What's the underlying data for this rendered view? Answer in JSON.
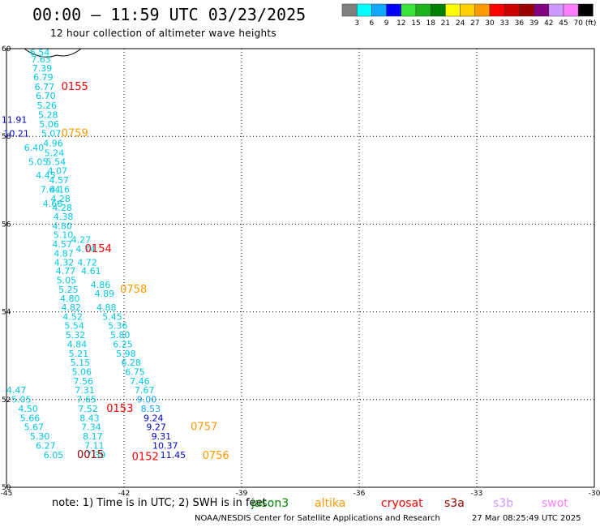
{
  "header": {
    "title": "00:00 – 11:59 UTC 03/23/2025",
    "subtitle": "12 hour collection of altimeter wave heights"
  },
  "colorbar": {
    "colors": [
      "#7f7f7f",
      "#00ffff",
      "#0fa7ff",
      "#0000ff",
      "#39e539",
      "#1db31d",
      "#008000",
      "#ffff00",
      "#ffd000",
      "#ff9900",
      "#ff0000",
      "#cc0000",
      "#990000",
      "#800080",
      "#cc99ff",
      "#ff80ff",
      "#000000"
    ],
    "labels": [
      "3",
      "6",
      "9",
      "12",
      "15",
      "18",
      "21",
      "24",
      "27",
      "30",
      "33",
      "36",
      "39",
      "42",
      "45",
      "70"
    ],
    "unit": "(ft)"
  },
  "footer": {
    "note": "note:  1) Time is in UTC;  2) SWH is in feet",
    "credit": "NOAA/NESDIS Center for Satellite Applications and Research",
    "timestamp": "27 Mar 08:25:49 UTC 2025"
  },
  "legend": [
    {
      "name": "jason3",
      "color": "#008000"
    },
    {
      "name": "altika",
      "color": "#ff9900"
    },
    {
      "name": "cryosat",
      "color": "#ff0000"
    },
    {
      "name": "s3a",
      "color": "#990000"
    },
    {
      "name": "s3b",
      "color": "#cc99ff"
    },
    {
      "name": "swot",
      "color": "#ff80ff"
    }
  ],
  "chart_data": {
    "type": "scatter",
    "xlim": [
      -45,
      -30
    ],
    "ylim": [
      50,
      60
    ],
    "x_ticks": [
      -45,
      -42,
      -39,
      -36,
      -33,
      -30
    ],
    "y_ticks": [
      50,
      52,
      54,
      56,
      58,
      60
    ],
    "x_tick_labels": [
      "-45",
      "-42",
      "-39",
      "-36",
      "-33",
      "-30"
    ],
    "y_tick_labels": [
      "50",
      "52",
      "54",
      "56",
      "58",
      "60"
    ],
    "grid": true,
    "wave_heights": [
      {
        "lon": -44.15,
        "lat": 59.84,
        "v": "6.54",
        "c": "#00c8e0"
      },
      {
        "lon": -44.12,
        "lat": 59.69,
        "v": "7.63",
        "c": "#00c8e0"
      },
      {
        "lon": -44.09,
        "lat": 59.48,
        "v": "7.39",
        "c": "#00c8e0"
      },
      {
        "lon": -44.06,
        "lat": 59.28,
        "v": "6.79",
        "c": "#00c8e0"
      },
      {
        "lon": -44.03,
        "lat": 59.06,
        "v": "6.77",
        "c": "#00c8e0"
      },
      {
        "lon": -44.0,
        "lat": 58.85,
        "v": "6.70",
        "c": "#00c8e0"
      },
      {
        "lon": -43.97,
        "lat": 58.63,
        "v": "5.26",
        "c": "#00c8e0"
      },
      {
        "lon": -43.94,
        "lat": 58.42,
        "v": "5.28",
        "c": "#00c8e0"
      },
      {
        "lon": -43.91,
        "lat": 58.21,
        "v": "5.06",
        "c": "#00c8e0"
      },
      {
        "lon": -43.86,
        "lat": 57.99,
        "v": "5.07",
        "c": "#00c8e0"
      },
      {
        "lon": -43.81,
        "lat": 57.77,
        "v": "4.96",
        "c": "#00c8e0"
      },
      {
        "lon": -43.78,
        "lat": 57.55,
        "v": "5.24",
        "c": "#00c8e0"
      },
      {
        "lon": -43.74,
        "lat": 57.35,
        "v": "5.54",
        "c": "#00c8e0"
      },
      {
        "lon": -43.7,
        "lat": 57.14,
        "v": "4.07",
        "c": "#00c8e0"
      },
      {
        "lon": -43.66,
        "lat": 56.93,
        "v": "4.57",
        "c": "#00c8e0"
      },
      {
        "lon": -43.64,
        "lat": 56.72,
        "v": "4.16",
        "c": "#00c8e0"
      },
      {
        "lon": -43.62,
        "lat": 56.51,
        "v": "4.28",
        "c": "#00c8e0"
      },
      {
        "lon": -43.58,
        "lat": 56.3,
        "v": "4.28",
        "c": "#00c8e0"
      },
      {
        "lon": -43.55,
        "lat": 56.1,
        "v": "4.38",
        "c": "#00c8e0"
      },
      {
        "lon": -43.58,
        "lat": 55.89,
        "v": "4.80",
        "c": "#00c8e0"
      },
      {
        "lon": -43.55,
        "lat": 55.68,
        "v": "5.10",
        "c": "#00c8e0"
      },
      {
        "lon": -43.58,
        "lat": 55.47,
        "v": "4.57",
        "c": "#00c8e0"
      },
      {
        "lon": -43.54,
        "lat": 55.26,
        "v": "4.87",
        "c": "#00c8e0"
      },
      {
        "lon": -43.53,
        "lat": 55.06,
        "v": "4.32",
        "c": "#00c8e0"
      },
      {
        "lon": -43.49,
        "lat": 54.86,
        "v": "4.77",
        "c": "#00c8e0"
      },
      {
        "lon": -43.47,
        "lat": 54.65,
        "v": "5.05",
        "c": "#00c8e0"
      },
      {
        "lon": -43.42,
        "lat": 54.44,
        "v": "5.25",
        "c": "#00c8e0"
      },
      {
        "lon": -43.38,
        "lat": 54.23,
        "v": "4.80",
        "c": "#00c8e0"
      },
      {
        "lon": -43.35,
        "lat": 54.03,
        "v": "4.82",
        "c": "#00c8e0"
      },
      {
        "lon": -43.31,
        "lat": 53.82,
        "v": "4.52",
        "c": "#00c8e0"
      },
      {
        "lon": -43.27,
        "lat": 53.61,
        "v": "5.54",
        "c": "#00c8e0"
      },
      {
        "lon": -43.24,
        "lat": 53.4,
        "v": "5.32",
        "c": "#00c8e0"
      },
      {
        "lon": -43.2,
        "lat": 53.19,
        "v": "4.84",
        "c": "#00c8e0"
      },
      {
        "lon": -43.16,
        "lat": 52.98,
        "v": "5.21",
        "c": "#00c8e0"
      },
      {
        "lon": -43.12,
        "lat": 52.77,
        "v": "5.15",
        "c": "#00c8e0"
      },
      {
        "lon": -43.08,
        "lat": 52.56,
        "v": "5.06",
        "c": "#00c8e0"
      },
      {
        "lon": -43.04,
        "lat": 52.35,
        "v": "7.56",
        "c": "#00c8e0"
      },
      {
        "lon": -43.0,
        "lat": 52.14,
        "v": "7.31",
        "c": "#00c8e0"
      },
      {
        "lon": -42.96,
        "lat": 51.93,
        "v": "7.65",
        "c": "#00c8e0"
      },
      {
        "lon": -42.92,
        "lat": 51.72,
        "v": "7.52",
        "c": "#00c8e0"
      },
      {
        "lon": -42.88,
        "lat": 51.51,
        "v": "8.43",
        "c": "#00c8e0"
      },
      {
        "lon": -42.84,
        "lat": 51.3,
        "v": "7.34",
        "c": "#00c8e0"
      },
      {
        "lon": -42.8,
        "lat": 51.09,
        "v": "8.17",
        "c": "#00c8e0"
      },
      {
        "lon": -42.76,
        "lat": 50.88,
        "v": "7.11",
        "c": "#00c8e0"
      },
      {
        "lon": -42.72,
        "lat": 50.67,
        "v": "7.39",
        "c": "#00c8e0"
      },
      {
        "lon": -44.8,
        "lat": 58.31,
        "v": "11.91",
        "c": "#0000c8"
      },
      {
        "lon": -44.75,
        "lat": 57.99,
        "v": "10.21",
        "c": "#0000c8"
      },
      {
        "lon": -44.3,
        "lat": 57.67,
        "v": "6.40",
        "c": "#00c8e0"
      },
      {
        "lon": -44.19,
        "lat": 57.35,
        "v": "5.05",
        "c": "#00c8e0"
      },
      {
        "lon": -44.0,
        "lat": 57.04,
        "v": "4.45",
        "c": "#00c8e0"
      },
      {
        "lon": -43.88,
        "lat": 56.72,
        "v": "7.64",
        "c": "#00c8e0"
      },
      {
        "lon": -43.82,
        "lat": 56.4,
        "v": "4.66",
        "c": "#00c8e0"
      },
      {
        "lon": -43.1,
        "lat": 55.57,
        "v": "4.27",
        "c": "#00c8e0"
      },
      {
        "lon": -42.98,
        "lat": 55.36,
        "v": "4.74",
        "c": "#00c8e0"
      },
      {
        "lon": -42.94,
        "lat": 55.06,
        "v": "4.72",
        "c": "#00c8e0"
      },
      {
        "lon": -42.84,
        "lat": 54.86,
        "v": "4.61",
        "c": "#00c8e0"
      },
      {
        "lon": -42.6,
        "lat": 54.55,
        "v": "4.86",
        "c": "#00c8e0"
      },
      {
        "lon": -42.5,
        "lat": 54.34,
        "v": "4.89",
        "c": "#00c8e0"
      },
      {
        "lon": -42.45,
        "lat": 54.03,
        "v": "4.88",
        "c": "#00c8e0"
      },
      {
        "lon": -42.3,
        "lat": 53.82,
        "v": "5.45",
        "c": "#00c8e0"
      },
      {
        "lon": -42.16,
        "lat": 53.61,
        "v": "5.36",
        "c": "#00c8e0"
      },
      {
        "lon": -42.1,
        "lat": 53.4,
        "v": "5.80",
        "c": "#00c8e0"
      },
      {
        "lon": -42.03,
        "lat": 53.19,
        "v": "6.25",
        "c": "#00c8e0"
      },
      {
        "lon": -41.95,
        "lat": 52.98,
        "v": "5.98",
        "c": "#00c8e0"
      },
      {
        "lon": -41.82,
        "lat": 52.77,
        "v": "6.28",
        "c": "#00c8e0"
      },
      {
        "lon": -41.72,
        "lat": 52.56,
        "v": "6.75",
        "c": "#00c8e0"
      },
      {
        "lon": -41.6,
        "lat": 52.35,
        "v": "7.46",
        "c": "#00c8e0"
      },
      {
        "lon": -41.48,
        "lat": 52.14,
        "v": "7.67",
        "c": "#00c8e0"
      },
      {
        "lon": -41.42,
        "lat": 51.93,
        "v": "9.00",
        "c": "#0fa7ff"
      },
      {
        "lon": -41.32,
        "lat": 51.72,
        "v": "8.53",
        "c": "#0fa7ff"
      },
      {
        "lon": -41.25,
        "lat": 51.51,
        "v": "9.24",
        "c": "#0000c8"
      },
      {
        "lon": -41.18,
        "lat": 51.3,
        "v": "9.27",
        "c": "#0000c8"
      },
      {
        "lon": -41.05,
        "lat": 51.09,
        "v": "9.31",
        "c": "#0000c8"
      },
      {
        "lon": -40.95,
        "lat": 50.88,
        "v": "10.37",
        "c": "#0000c8"
      },
      {
        "lon": -40.75,
        "lat": 50.67,
        "v": "11.45",
        "c": "#0000c8"
      },
      {
        "lon": -44.75,
        "lat": 52.14,
        "v": "4.47",
        "c": "#00c8e0"
      },
      {
        "lon": -44.62,
        "lat": 51.93,
        "v": "5.05",
        "c": "#00c8e0"
      },
      {
        "lon": -44.45,
        "lat": 51.72,
        "v": "4.50",
        "c": "#00c8e0"
      },
      {
        "lon": -44.4,
        "lat": 51.51,
        "v": "5.66",
        "c": "#00c8e0"
      },
      {
        "lon": -44.3,
        "lat": 51.3,
        "v": "5.67",
        "c": "#00c8e0"
      },
      {
        "lon": -44.15,
        "lat": 51.09,
        "v": "5.30",
        "c": "#00c8e0"
      },
      {
        "lon": -44.0,
        "lat": 50.88,
        "v": "6.27",
        "c": "#00c8e0"
      },
      {
        "lon": -43.8,
        "lat": 50.67,
        "v": "6.05",
        "c": "#00c8e0"
      }
    ],
    "pass_labels": [
      {
        "lon": -43.6,
        "lat": 59.06,
        "t": "0155",
        "c": "#ff0000"
      },
      {
        "lon": -43.6,
        "lat": 57.99,
        "t": "0759",
        "c": "#ff9900"
      },
      {
        "lon": -43.0,
        "lat": 55.36,
        "t": "0154",
        "c": "#ff0000"
      },
      {
        "lon": -42.1,
        "lat": 54.44,
        "t": "0758",
        "c": "#ff9900"
      },
      {
        "lon": -42.45,
        "lat": 51.72,
        "t": "0153",
        "c": "#ff0000"
      },
      {
        "lon": -40.3,
        "lat": 51.3,
        "t": "0757",
        "c": "#ff9900"
      },
      {
        "lon": -43.2,
        "lat": 50.67,
        "t": "0015",
        "c": "#990000"
      },
      {
        "lon": -41.8,
        "lat": 50.62,
        "t": "0152",
        "c": "#ff0000"
      },
      {
        "lon": -40.0,
        "lat": 50.65,
        "t": "0756",
        "c": "#ff9900"
      }
    ]
  }
}
